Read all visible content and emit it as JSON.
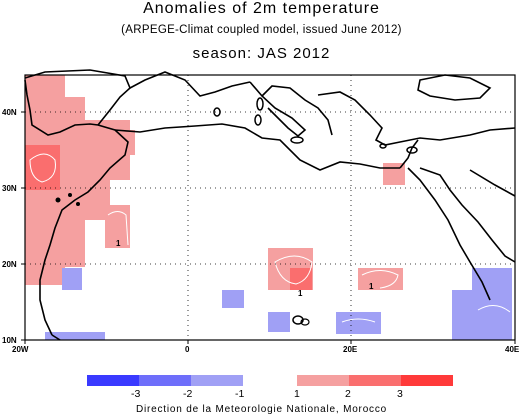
{
  "title": "Anomalies of 2m temperature",
  "subtitle": "(ARPEGE-Climat coupled model, issued June 2012)",
  "season": "season: JAS 2012",
  "credit": "Direction de la Meteorologie Nationale, Morocco",
  "axes": {
    "lon_ticks": [
      "20W",
      "0",
      "20E",
      "40E"
    ],
    "lat_ticks": [
      "10N",
      "20N",
      "30N",
      "40N"
    ]
  },
  "contour_labels": [
    "1",
    "1",
    "1"
  ],
  "colorbar": {
    "labels": [
      "-3",
      "-2",
      "-1",
      "1",
      "2",
      "3"
    ],
    "colors": [
      "#3a3aff",
      "#6e6efa",
      "#a0a0f5",
      "#f5a0a0",
      "#fa6e6e",
      "#ff3a3a"
    ]
  },
  "colors": {
    "warm_light": "#f5a0a0",
    "warm_mid": "#fa6e6e",
    "cold_light": "#a0a0f5",
    "cold_mid": "#6e6efa"
  }
}
